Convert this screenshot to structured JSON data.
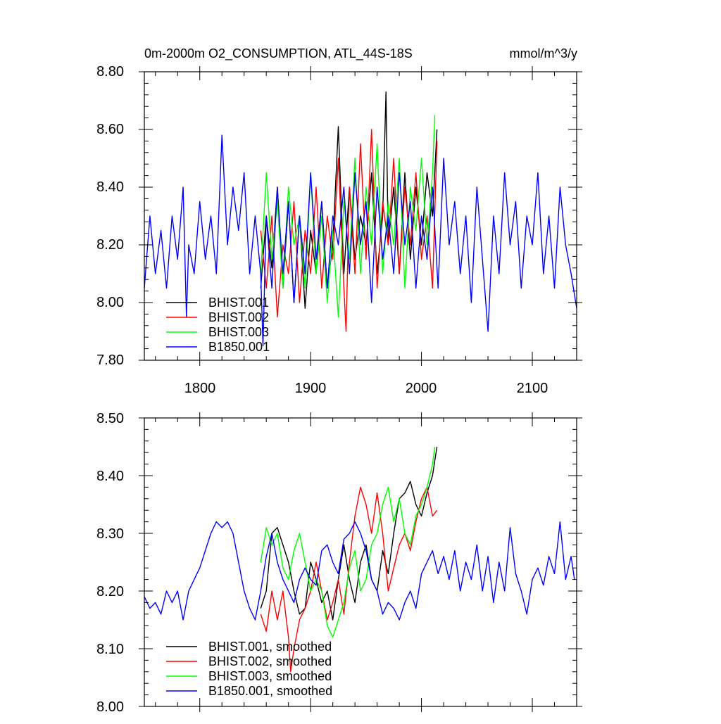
{
  "chart_data": [
    {
      "type": "line",
      "title": "0m-2000m O2_CONSUMPTION, ATL_44S-18S",
      "units": "mmol/m^3/y",
      "xlabel": "",
      "ylabel": "",
      "xlim": [
        1750,
        2140
      ],
      "ylim": [
        7.8,
        8.8
      ],
      "xticks": [
        1800,
        1900,
        2000,
        2100
      ],
      "xtick_labels": [
        "1800",
        "1900",
        "2000",
        "2100"
      ],
      "yticks": [
        7.8,
        8.0,
        8.2,
        8.4,
        8.6,
        8.8
      ],
      "ytick_labels": [
        "7.80",
        "8.00",
        "8.20",
        "8.40",
        "8.60",
        "8.80"
      ],
      "legend_position": "bottom-left",
      "grid": false,
      "series": [
        {
          "name": "BHIST.001",
          "color": "#000000",
          "x": [
            1855,
            1860,
            1865,
            1870,
            1875,
            1880,
            1885,
            1890,
            1895,
            1900,
            1905,
            1910,
            1915,
            1920,
            1925,
            1930,
            1935,
            1940,
            1945,
            1950,
            1955,
            1960,
            1965,
            1968,
            1970,
            1975,
            1980,
            1985,
            1990,
            1995,
            2000,
            2005,
            2010,
            2014
          ],
          "values": [
            8.05,
            8.3,
            8.12,
            8.4,
            8.05,
            8.35,
            8.0,
            8.3,
            7.98,
            8.25,
            8.1,
            8.35,
            8.05,
            8.2,
            8.61,
            8.1,
            8.4,
            8.15,
            8.3,
            8.2,
            8.45,
            8.1,
            8.3,
            8.73,
            8.2,
            8.4,
            8.1,
            8.45,
            8.15,
            8.4,
            8.2,
            8.45,
            8.3,
            8.6
          ]
        },
        {
          "name": "BHIST.002",
          "color": "#ff0000",
          "x": [
            1855,
            1860,
            1865,
            1870,
            1875,
            1880,
            1885,
            1890,
            1895,
            1900,
            1905,
            1910,
            1915,
            1920,
            1925,
            1930,
            1932,
            1935,
            1940,
            1945,
            1950,
            1955,
            1960,
            1965,
            1970,
            1975,
            1980,
            1985,
            1990,
            1995,
            2000,
            2005,
            2010,
            2014
          ],
          "values": [
            8.25,
            8.05,
            8.3,
            7.95,
            8.2,
            8.1,
            8.35,
            8.0,
            8.25,
            8.1,
            8.4,
            8.05,
            8.3,
            8.15,
            8.5,
            8.05,
            7.9,
            8.4,
            8.1,
            8.55,
            8.15,
            8.6,
            8.05,
            8.35,
            8.2,
            8.5,
            8.1,
            8.4,
            8.2,
            8.45,
            8.15,
            8.3,
            8.05,
            8.56
          ]
        },
        {
          "name": "BHIST.003",
          "color": "#00ff00",
          "x": [
            1855,
            1860,
            1865,
            1870,
            1875,
            1880,
            1885,
            1890,
            1895,
            1900,
            1905,
            1910,
            1915,
            1920,
            1925,
            1930,
            1935,
            1940,
            1945,
            1950,
            1955,
            1960,
            1965,
            1970,
            1975,
            1980,
            1985,
            1990,
            1995,
            2000,
            2005,
            2010,
            2012
          ],
          "values": [
            8.1,
            8.45,
            8.15,
            8.35,
            8.05,
            8.4,
            8.2,
            8.3,
            8.05,
            8.45,
            8.1,
            8.3,
            8.0,
            8.25,
            7.95,
            8.35,
            8.15,
            8.5,
            8.1,
            8.4,
            8.2,
            8.55,
            8.1,
            8.35,
            8.2,
            8.5,
            8.05,
            8.4,
            8.25,
            8.5,
            8.2,
            8.45,
            8.65
          ]
        },
        {
          "name": "B1850.001",
          "color": "#0000ff",
          "x": [
            1750,
            1755,
            1760,
            1765,
            1770,
            1775,
            1780,
            1785,
            1788,
            1790,
            1795,
            1800,
            1805,
            1810,
            1815,
            1820,
            1825,
            1830,
            1835,
            1840,
            1845,
            1850,
            1855,
            1857,
            1860,
            1865,
            1870,
            1875,
            1880,
            1885,
            1890,
            1895,
            1900,
            1905,
            1910,
            1915,
            1920,
            1925,
            1930,
            1935,
            1940,
            1945,
            1950,
            1955,
            1960,
            1965,
            1970,
            1975,
            1980,
            1985,
            1990,
            1995,
            2000,
            2005,
            2010,
            2015,
            2020,
            2025,
            2030,
            2035,
            2040,
            2045,
            2050,
            2055,
            2060,
            2065,
            2070,
            2075,
            2080,
            2085,
            2090,
            2095,
            2100,
            2105,
            2110,
            2115,
            2120,
            2125,
            2130,
            2135,
            2140
          ],
          "values": [
            8.05,
            8.3,
            8.1,
            8.25,
            8.05,
            8.3,
            8.15,
            8.4,
            7.95,
            8.2,
            8.1,
            8.35,
            8.15,
            8.3,
            8.1,
            8.58,
            8.2,
            8.4,
            8.25,
            8.45,
            8.1,
            8.3,
            8.1,
            7.85,
            8.3,
            8.05,
            8.4,
            8.1,
            8.35,
            8.0,
            8.3,
            8.1,
            8.45,
            8.15,
            8.35,
            8.05,
            8.3,
            8.2,
            8.4,
            8.1,
            8.45,
            8.2,
            8.35,
            8.0,
            8.4,
            8.15,
            8.3,
            8.1,
            8.45,
            8.2,
            8.35,
            8.05,
            8.3,
            8.15,
            8.4,
            8.05,
            8.5,
            8.2,
            8.35,
            8.1,
            8.3,
            8.0,
            8.4,
            8.15,
            7.9,
            8.3,
            8.1,
            8.45,
            8.2,
            8.35,
            8.05,
            8.3,
            8.2,
            8.45,
            8.1,
            8.3,
            8.05,
            8.4,
            8.2,
            8.1,
            7.98
          ]
        }
      ],
      "legend": [
        "BHIST.001",
        "BHIST.002",
        "BHIST.003",
        "B1850.001"
      ]
    },
    {
      "type": "line",
      "title": "",
      "xlabel": "",
      "ylabel": "",
      "xlim": [
        1750,
        2140
      ],
      "ylim": [
        8.0,
        8.5
      ],
      "xticks": [
        1800,
        1900,
        2000,
        2100
      ],
      "yticks": [
        8.0,
        8.1,
        8.2,
        8.3,
        8.4,
        8.5
      ],
      "ytick_labels": [
        "8.00",
        "8.10",
        "8.20",
        "8.30",
        "8.40",
        "8.50"
      ],
      "legend_position": "bottom-left",
      "grid": false,
      "series": [
        {
          "name": "BHIST.001, smoothed",
          "color": "#000000",
          "x": [
            1855,
            1860,
            1865,
            1870,
            1875,
            1880,
            1885,
            1890,
            1895,
            1900,
            1905,
            1910,
            1915,
            1920,
            1925,
            1930,
            1935,
            1940,
            1945,
            1950,
            1955,
            1960,
            1965,
            1970,
            1975,
            1980,
            1985,
            1990,
            1995,
            2000,
            2005,
            2010,
            2014
          ],
          "values": [
            8.17,
            8.2,
            8.3,
            8.31,
            8.28,
            8.25,
            8.2,
            8.16,
            8.17,
            8.25,
            8.22,
            8.18,
            8.2,
            8.15,
            8.22,
            8.28,
            8.22,
            8.18,
            8.25,
            8.28,
            8.22,
            8.2,
            8.27,
            8.23,
            8.3,
            8.36,
            8.37,
            8.39,
            8.35,
            8.33,
            8.37,
            8.4,
            8.45
          ]
        },
        {
          "name": "BHIST.002, smoothed",
          "color": "#ff0000",
          "x": [
            1855,
            1860,
            1865,
            1870,
            1875,
            1880,
            1882,
            1885,
            1890,
            1895,
            1900,
            1905,
            1910,
            1915,
            1920,
            1925,
            1930,
            1935,
            1940,
            1945,
            1950,
            1955,
            1960,
            1965,
            1970,
            1975,
            1980,
            1985,
            1990,
            1995,
            2000,
            2005,
            2010,
            2014
          ],
          "values": [
            8.16,
            8.13,
            8.2,
            8.15,
            8.2,
            8.12,
            8.06,
            8.1,
            8.15,
            8.17,
            8.2,
            8.25,
            8.2,
            8.15,
            8.18,
            8.22,
            8.16,
            8.25,
            8.33,
            8.38,
            8.35,
            8.3,
            8.37,
            8.3,
            8.2,
            8.24,
            8.28,
            8.3,
            8.27,
            8.32,
            8.36,
            8.38,
            8.33,
            8.34
          ]
        },
        {
          "name": "BHIST.003, smoothed",
          "color": "#00ff00",
          "x": [
            1855,
            1860,
            1865,
            1870,
            1875,
            1880,
            1885,
            1890,
            1895,
            1900,
            1905,
            1910,
            1915,
            1920,
            1925,
            1930,
            1935,
            1940,
            1945,
            1950,
            1955,
            1960,
            1965,
            1970,
            1975,
            1980,
            1985,
            1990,
            1995,
            2000,
            2005,
            2010,
            2012
          ],
          "values": [
            8.25,
            8.31,
            8.28,
            8.3,
            8.24,
            8.22,
            8.27,
            8.3,
            8.25,
            8.2,
            8.22,
            8.2,
            8.14,
            8.12,
            8.15,
            8.18,
            8.24,
            8.27,
            8.2,
            8.22,
            8.28,
            8.3,
            8.35,
            8.38,
            8.32,
            8.36,
            8.3,
            8.28,
            8.33,
            8.35,
            8.38,
            8.42,
            8.45
          ]
        },
        {
          "name": "B1850.001, smoothed",
          "color": "#0000ff",
          "x": [
            1750,
            1755,
            1760,
            1765,
            1770,
            1775,
            1780,
            1785,
            1790,
            1795,
            1800,
            1805,
            1810,
            1815,
            1820,
            1825,
            1830,
            1835,
            1840,
            1845,
            1850,
            1855,
            1860,
            1865,
            1870,
            1875,
            1880,
            1885,
            1890,
            1895,
            1900,
            1905,
            1910,
            1915,
            1920,
            1925,
            1930,
            1935,
            1940,
            1945,
            1950,
            1955,
            1960,
            1965,
            1970,
            1975,
            1980,
            1985,
            1990,
            1995,
            2000,
            2005,
            2010,
            2015,
            2020,
            2025,
            2030,
            2035,
            2040,
            2045,
            2050,
            2055,
            2060,
            2065,
            2070,
            2075,
            2080,
            2085,
            2090,
            2095,
            2100,
            2105,
            2110,
            2115,
            2120,
            2125,
            2130,
            2135,
            2138
          ],
          "values": [
            8.19,
            8.17,
            8.18,
            8.16,
            8.2,
            8.18,
            8.2,
            8.15,
            8.2,
            8.22,
            8.24,
            8.27,
            8.3,
            8.32,
            8.31,
            8.32,
            8.3,
            8.25,
            8.2,
            8.17,
            8.15,
            8.2,
            8.26,
            8.3,
            8.25,
            8.22,
            8.2,
            8.18,
            8.22,
            8.24,
            8.22,
            8.21,
            8.27,
            8.28,
            8.25,
            8.23,
            8.29,
            8.3,
            8.32,
            8.3,
            8.27,
            8.22,
            8.2,
            8.16,
            8.18,
            8.17,
            8.15,
            8.18,
            8.2,
            8.17,
            8.23,
            8.25,
            8.27,
            8.23,
            8.26,
            8.22,
            8.27,
            8.2,
            8.25,
            8.22,
            8.28,
            8.2,
            8.26,
            8.18,
            8.25,
            8.2,
            8.31,
            8.23,
            8.2,
            8.16,
            8.22,
            8.24,
            8.21,
            8.26,
            8.23,
            8.32,
            8.22,
            8.26,
            8.22
          ]
        }
      ],
      "legend": [
        "BHIST.001, smoothed",
        "BHIST.002, smoothed",
        "BHIST.003, smoothed",
        "B1850.001, smoothed"
      ]
    }
  ]
}
